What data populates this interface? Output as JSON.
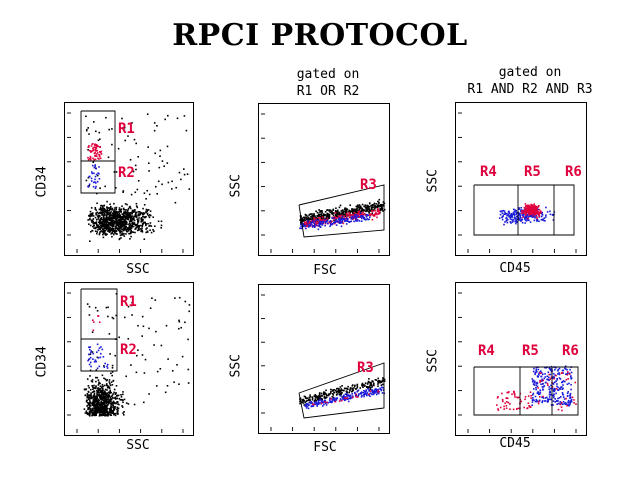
{
  "title": "RPCI PROTOCOL",
  "col_headers": {
    "col2_line1": "gated on",
    "col2_line2": "R1 OR R2",
    "col3_line1": "gated on",
    "col3_line2": "R1 AND R2 AND R3"
  },
  "axes": {
    "cd34": "CD34",
    "ssc": "SSC",
    "fsc": "FSC",
    "cd45": "CD45"
  },
  "regions": {
    "r1": "R1",
    "r2": "R2",
    "r3": "R3",
    "r4": "R4",
    "r5": "R5",
    "r6": "R6"
  },
  "colors": {
    "all_events": "#000000",
    "gate_r1": "#e0003c",
    "gate_r2": "#1a1ad8",
    "region_label": "#e0003c"
  }
}
